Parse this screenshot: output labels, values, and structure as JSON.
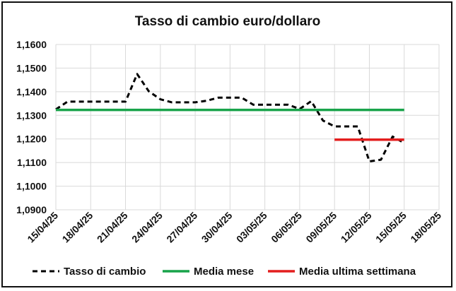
{
  "chart_data": {
    "type": "line",
    "title": "Tasso di cambio euro/dollaro",
    "xlabel": "",
    "ylabel": "",
    "x_ticks": [
      "15/04/25",
      "18/04/25",
      "21/04/25",
      "24/04/25",
      "27/04/25",
      "30/04/25",
      "03/05/25",
      "06/05/25",
      "09/05/25",
      "12/05/25",
      "15/05/25",
      "18/05/25"
    ],
    "x_range": [
      "2025-04-15",
      "2025-05-18"
    ],
    "ylim": [
      1.09,
      1.16
    ],
    "y_ticks": [
      "1,1600",
      "1,1500",
      "1,1400",
      "1,1300",
      "1,1200",
      "1,1100",
      "1,1000",
      "1,0900"
    ],
    "grid": "horizontal",
    "legend_position": "bottom",
    "series": [
      {
        "name": "Tasso di cambio",
        "style": "dashed",
        "color": "#000000",
        "points": [
          [
            "2025-04-15",
            1.1325
          ],
          [
            "2025-04-16",
            1.1358
          ],
          [
            "2025-04-17",
            1.1358
          ],
          [
            "2025-04-18",
            1.1358
          ],
          [
            "2025-04-19",
            1.1358
          ],
          [
            "2025-04-20",
            1.1358
          ],
          [
            "2025-04-21",
            1.1358
          ],
          [
            "2025-04-22",
            1.1475
          ],
          [
            "2025-04-23",
            1.1402
          ],
          [
            "2025-04-24",
            1.1368
          ],
          [
            "2025-04-25",
            1.1355
          ],
          [
            "2025-04-26",
            1.1355
          ],
          [
            "2025-04-27",
            1.1355
          ],
          [
            "2025-04-28",
            1.1362
          ],
          [
            "2025-04-29",
            1.1375
          ],
          [
            "2025-04-30",
            1.1375
          ],
          [
            "2025-05-01",
            1.1375
          ],
          [
            "2025-05-02",
            1.1345
          ],
          [
            "2025-05-03",
            1.1345
          ],
          [
            "2025-05-04",
            1.1345
          ],
          [
            "2025-05-05",
            1.1345
          ],
          [
            "2025-05-06",
            1.1327
          ],
          [
            "2025-05-07",
            1.136
          ],
          [
            "2025-05-08",
            1.1278
          ],
          [
            "2025-05-09",
            1.1253
          ],
          [
            "2025-05-10",
            1.1253
          ],
          [
            "2025-05-11",
            1.1253
          ],
          [
            "2025-05-12",
            1.1105
          ],
          [
            "2025-05-13",
            1.1112
          ],
          [
            "2025-05-14",
            1.121
          ],
          [
            "2025-05-15",
            1.1183
          ]
        ]
      },
      {
        "name": "Media mese",
        "style": "solid",
        "color": "#18a34a",
        "points": [
          [
            "2025-04-15",
            1.1323
          ],
          [
            "2025-05-15",
            1.1323
          ]
        ]
      },
      {
        "name": "Media ultima settimana",
        "style": "solid",
        "color": "#e31e1e",
        "points": [
          [
            "2025-05-09",
            1.1197
          ],
          [
            "2025-05-15",
            1.1197
          ]
        ]
      }
    ]
  }
}
